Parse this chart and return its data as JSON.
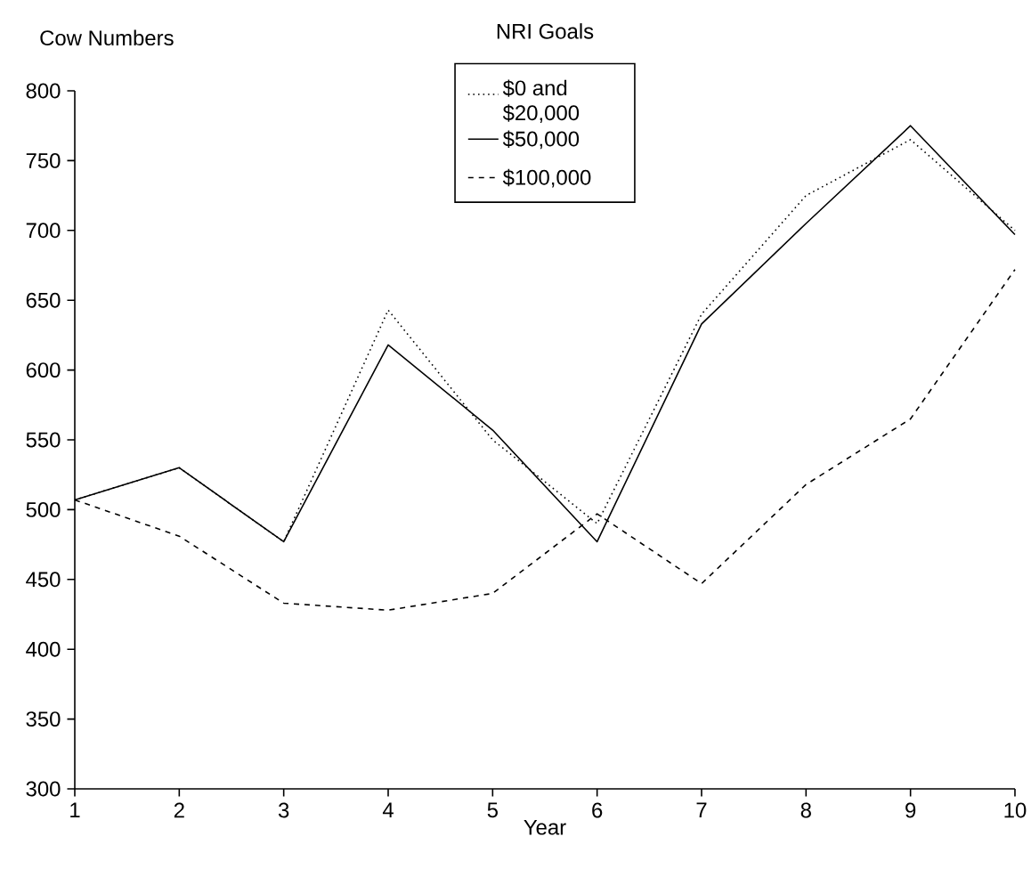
{
  "chart_data": {
    "type": "line",
    "ylabel": "Cow Numbers",
    "xlabel": "Year",
    "legend_title": "NRI Goals",
    "x": [
      1,
      2,
      3,
      4,
      5,
      6,
      7,
      8,
      9,
      10
    ],
    "xlim": [
      1,
      10
    ],
    "xticks": [
      1,
      2,
      3,
      4,
      5,
      6,
      7,
      8,
      9,
      10
    ],
    "ylim": [
      300,
      800
    ],
    "yticks": [
      300,
      350,
      400,
      450,
      500,
      550,
      600,
      650,
      700,
      750,
      800
    ],
    "grid": false,
    "legend": "top",
    "marker": "none",
    "series": [
      {
        "name": "$0 and $20,000",
        "color": "#000000",
        "line_style": "dotted",
        "values": [
          507,
          530,
          477,
          643,
          550,
          490,
          640,
          725,
          765,
          700
        ]
      },
      {
        "name": "$50,000",
        "color": "#000000",
        "line_style": "solid",
        "values": [
          507,
          530,
          477,
          618,
          557,
          477,
          633,
          705,
          775,
          697
        ]
      },
      {
        "name": "$100,000",
        "color": "#000000",
        "line_style": "dashed",
        "values": [
          507,
          481,
          433,
          428,
          440,
          497,
          447,
          518,
          565,
          672
        ]
      }
    ]
  }
}
